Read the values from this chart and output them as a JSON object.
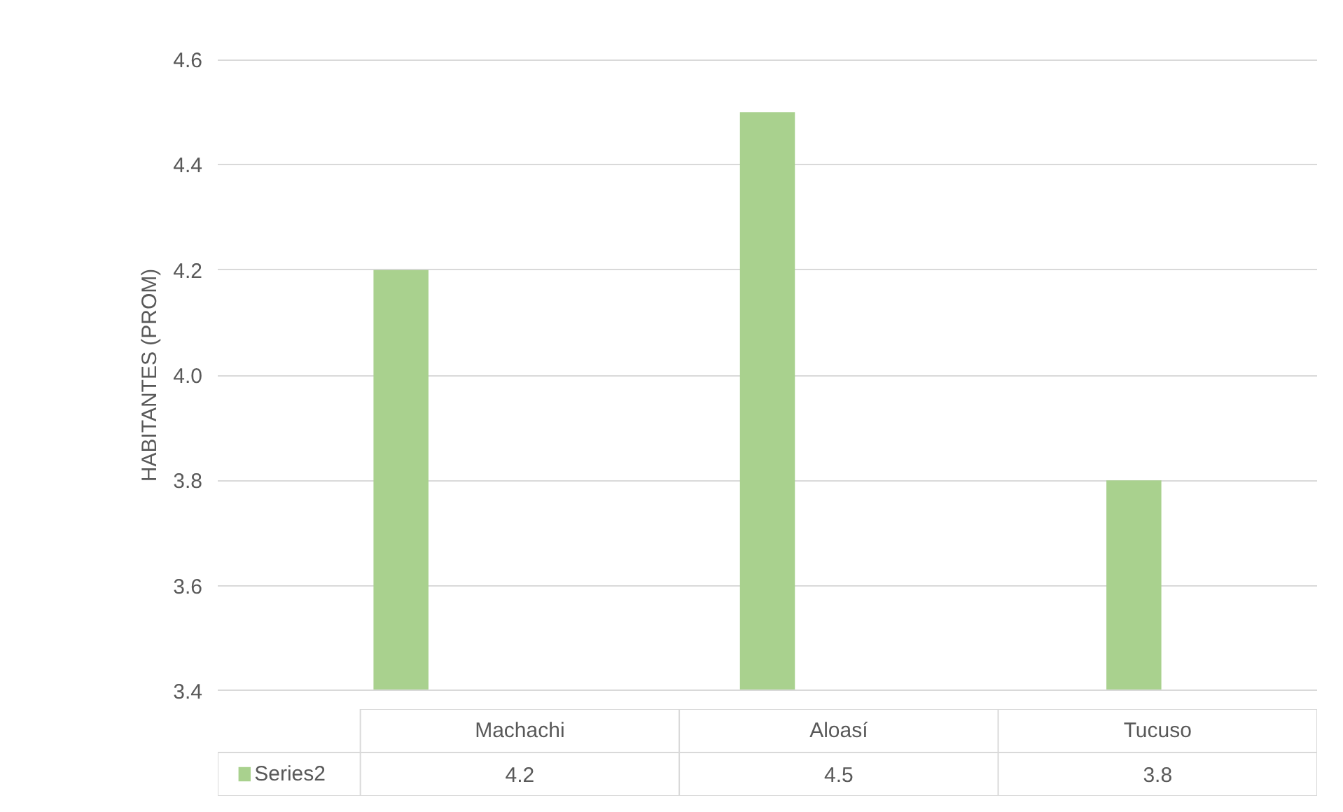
{
  "chart_data": {
    "type": "bar",
    "ylabel": "HABITANTES (PROM)",
    "categories": [
      "Machachi",
      "Aloasí",
      "Tucuso"
    ],
    "series": [
      {
        "name": "Series2",
        "color": "#a9d18e",
        "values": [
          4.2,
          4.5,
          3.8
        ]
      }
    ],
    "ylim": [
      3.4,
      4.6
    ],
    "yticks": [
      "3.4",
      "3.6",
      "3.8",
      "4.0",
      "4.2",
      "4.4",
      "4.6"
    ],
    "grid": "y",
    "data_labels": true
  }
}
